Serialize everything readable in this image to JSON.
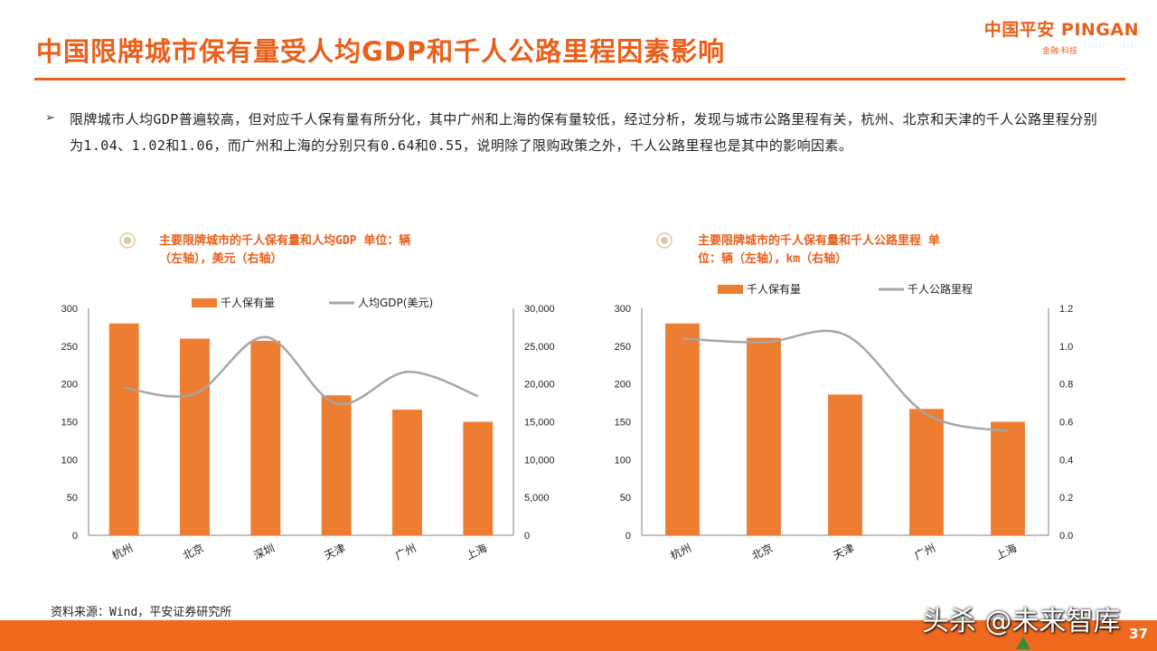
{
  "title": "中国限牌城市保有量受人均GDP和千人公路里程因素影响",
  "logo": {
    "brand": "中国平安 PINGAN",
    "tagline": "金融·科技"
  },
  "bullet": "限牌城市人均GDP普遍较高，但对应千人保有量有所分化，其中广州和上海的保有量较低，经过分析，发现与城市公路里程有关，杭州、北京和天津的千人公路里程分别为1.04、1.02和1.06，而广州和上海的分别只有0.64和0.55，说明除了限购政策之外，千人公路里程也是其中的影响因素。",
  "source": "资料来源：Wind，平安证券研究所",
  "watermark": "头杀 @未来智库",
  "page_number": "37",
  "colors": {
    "accent": "#e8601c",
    "bar": "#ed7d31",
    "line": "#a6a6a6",
    "footer": "#ef6a1f"
  },
  "chart_data": [
    {
      "type": "bar",
      "title_line1": "主要限牌城市的千人保有量和人均GDP  单位：辆",
      "title_line2": "（左轴），美元（右轴）",
      "categories": [
        "杭州",
        "北京",
        "深圳",
        "天津",
        "广州",
        "上海"
      ],
      "series": [
        {
          "name": "千人保有量",
          "type": "bar",
          "axis": "left",
          "values": [
            280,
            260,
            257,
            185,
            166,
            150
          ]
        },
        {
          "name": "人均GDP(美元)",
          "type": "line",
          "axis": "right",
          "values": [
            19500,
            18700,
            26200,
            17400,
            21600,
            18400
          ]
        }
      ],
      "yleft": {
        "min": 0,
        "max": 300,
        "ticks": [
          "0",
          "50",
          "100",
          "150",
          "200",
          "250",
          "300"
        ]
      },
      "yright": {
        "min": 0,
        "max": 30000,
        "ticks": [
          "0",
          "5,000",
          "10,000",
          "15,000",
          "20,000",
          "25,000",
          "30,000"
        ]
      },
      "legend": "top-center"
    },
    {
      "type": "bar",
      "title_line1": "主要限牌城市的千人保有量和千人公路里程  单",
      "title_line2": "位：辆（左轴），km（右轴）",
      "categories": [
        "杭州",
        "北京",
        "天津",
        "广州",
        "上海"
      ],
      "series": [
        {
          "name": "千人保有量",
          "type": "bar",
          "axis": "left",
          "values": [
            280,
            261,
            186,
            167,
            150
          ]
        },
        {
          "name": "千人公路里程",
          "type": "line",
          "axis": "right",
          "values": [
            1.04,
            1.02,
            1.06,
            0.64,
            0.55
          ]
        }
      ],
      "yleft": {
        "min": 0,
        "max": 300,
        "ticks": [
          "0",
          "50",
          "100",
          "150",
          "200",
          "250",
          "300"
        ]
      },
      "yright": {
        "min": 0,
        "max": 1.2,
        "ticks": [
          "0.0",
          "0.2",
          "0.4",
          "0.6",
          "0.8",
          "1.0",
          "1.2"
        ]
      },
      "legend": "top-center"
    }
  ]
}
